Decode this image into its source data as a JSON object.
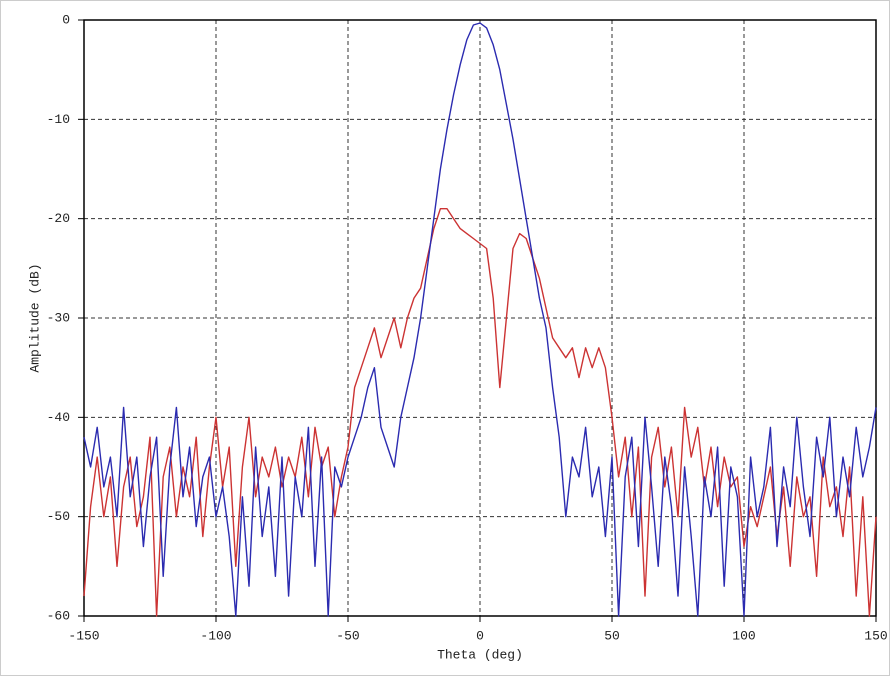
{
  "chart_data": {
    "type": "line",
    "x_label": "Theta (deg)",
    "y_label": "Amplitude (dB)",
    "x": [
      -150,
      -147.5,
      -145,
      -142.5,
      -140,
      -137.5,
      -135,
      -132.5,
      -130,
      -127.5,
      -125,
      -122.5,
      -120,
      -117.5,
      -115,
      -112.5,
      -110,
      -107.5,
      -105,
      -102.5,
      -100,
      -97.5,
      -95,
      -92.5,
      -90,
      -87.5,
      -85,
      -82.5,
      -80,
      -77.5,
      -75,
      -72.5,
      -70,
      -67.5,
      -65,
      -62.5,
      -60,
      -57.5,
      -55,
      -52.5,
      -50,
      -47.5,
      -45,
      -42.5,
      -40,
      -37.5,
      -35,
      -32.5,
      -30,
      -27.5,
      -25,
      -22.5,
      -20,
      -17.5,
      -15,
      -12.5,
      -10,
      -7.5,
      -5,
      -2.5,
      0,
      2.5,
      5,
      7.5,
      10,
      12.5,
      15,
      17.5,
      20,
      22.5,
      25,
      27.5,
      30,
      32.5,
      35,
      37.5,
      40,
      42.5,
      45,
      47.5,
      50,
      52.5,
      55,
      57.5,
      60,
      62.5,
      65,
      67.5,
      70,
      72.5,
      75,
      77.5,
      80,
      82.5,
      85,
      87.5,
      90,
      92.5,
      95,
      97.5,
      100,
      102.5,
      105,
      107.5,
      110,
      112.5,
      115,
      117.5,
      120,
      122.5,
      125,
      127.5,
      130,
      132.5,
      135,
      137.5,
      140,
      142.5,
      145,
      147.5,
      150
    ],
    "series": [
      {
        "color": "#2b2bb0",
        "values": [
          -42,
          -45,
          -41,
          -47,
          -44,
          -50,
          -39,
          -48,
          -44,
          -53,
          -46,
          -42,
          -56,
          -45,
          -39,
          -48,
          -43,
          -51,
          -46,
          -44,
          -50,
          -47,
          -52,
          -60,
          -48,
          -57,
          -43,
          -52,
          -47,
          -56,
          -44,
          -58,
          -46,
          -50,
          -41,
          -55,
          -44,
          -60,
          -45,
          -47,
          -44,
          -42,
          -40,
          -37,
          -35,
          -41,
          -43,
          -45,
          -40,
          -37,
          -34,
          -30,
          -25,
          -20,
          -15,
          -11,
          -7.5,
          -4.5,
          -2,
          -0.5,
          -0.3,
          -0.8,
          -2.5,
          -5,
          -8.5,
          -12,
          -16,
          -20,
          -24,
          -28,
          -31,
          -37,
          -42,
          -50,
          -44,
          -46,
          -41,
          -48,
          -45,
          -52,
          -44,
          -60,
          -46,
          -42,
          -53,
          -40,
          -47,
          -55,
          -44,
          -49,
          -58,
          -45,
          -52,
          -60,
          -46,
          -50,
          -43,
          -57,
          -45,
          -48,
          -60,
          -44,
          -50,
          -47,
          -41,
          -53,
          -45,
          -49,
          -40,
          -47,
          -52,
          -42,
          -46,
          -40,
          -50,
          -44,
          -48,
          -41,
          -46,
          -43,
          -39
        ]
      },
      {
        "color": "#cc3333",
        "values": [
          -58,
          -49,
          -44,
          -50,
          -46,
          -55,
          -47,
          -44,
          -51,
          -48,
          -42,
          -60,
          -46,
          -43,
          -50,
          -45,
          -48,
          -42,
          -52,
          -45,
          -40,
          -47,
          -43,
          -55,
          -45,
          -40,
          -48,
          -44,
          -46,
          -43,
          -47,
          -44,
          -46,
          -42,
          -48,
          -41,
          -45,
          -43,
          -50,
          -46,
          -43,
          -37,
          -35,
          -33,
          -31,
          -34,
          -32,
          -30,
          -33,
          -30,
          -28,
          -27,
          -24,
          -21,
          -19,
          -19,
          -20,
          -21,
          -21.5,
          -22,
          -22.5,
          -23,
          -28,
          -37,
          -30,
          -23,
          -21.5,
          -22,
          -24,
          -26,
          -29,
          -32,
          -33,
          -34,
          -33,
          -36,
          -33,
          -35,
          -33,
          -35,
          -40,
          -46,
          -42,
          -50,
          -43,
          -58,
          -44,
          -41,
          -47,
          -43,
          -50,
          -39,
          -44,
          -41,
          -47,
          -43,
          -49,
          -44,
          -47,
          -46,
          -53,
          -49,
          -51,
          -48,
          -45,
          -52,
          -47,
          -55,
          -46,
          -50,
          -48,
          -56,
          -44,
          -49,
          -47,
          -52,
          -45,
          -58,
          -48,
          -60,
          -50
        ]
      }
    ],
    "xlim": [
      -150,
      150
    ],
    "xticks": [
      -150,
      -100,
      -50,
      0,
      50,
      100,
      150
    ],
    "ylim": [
      -60,
      0
    ],
    "yticks": [
      0,
      -10,
      -20,
      -30,
      -40,
      -50,
      -60
    ],
    "grid": true
  }
}
